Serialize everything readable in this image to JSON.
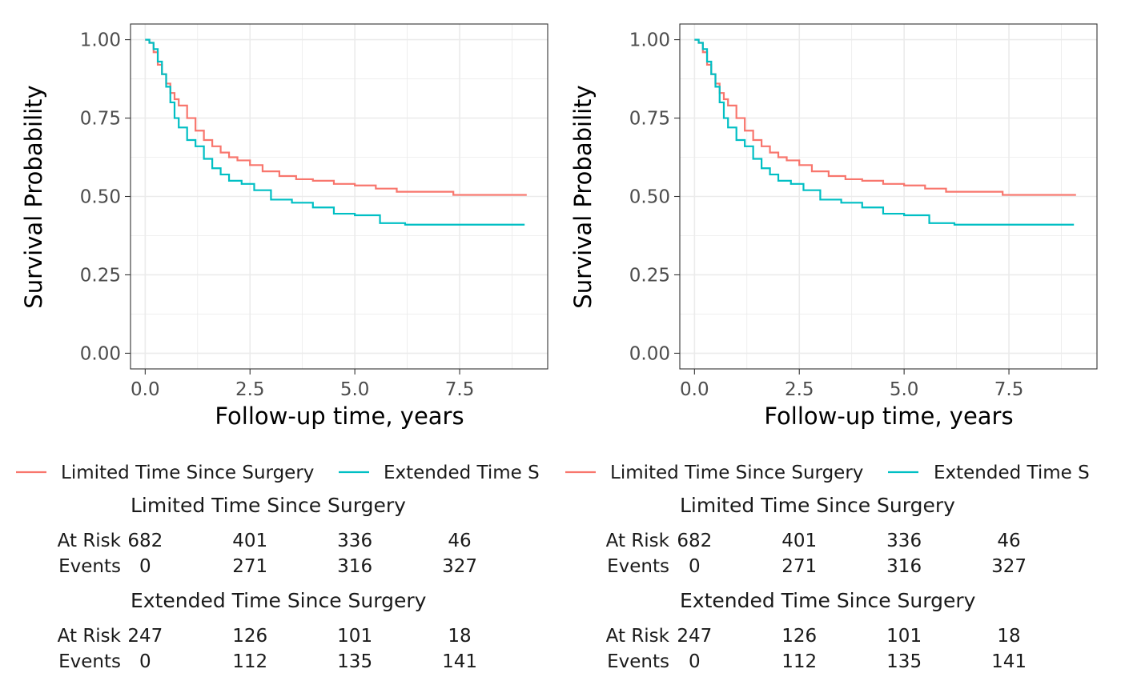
{
  "colors": {
    "limited": "#F8766D",
    "extended": "#00BFC4",
    "grid": "#EBEBEB",
    "text": "#4D4D4D"
  },
  "chart_data": [
    {
      "type": "line",
      "title": "",
      "xlabel": "Follow-up time, years",
      "ylabel": "Survival Probability",
      "xlim": [
        -0.35,
        9.6
      ],
      "ylim": [
        -0.05,
        1.05
      ],
      "xticks": [
        "0.0",
        "2.5",
        "5.0",
        "7.5"
      ],
      "yticks": [
        "0.00",
        "0.25",
        "0.50",
        "0.75",
        "1.00"
      ],
      "grid": true,
      "legend_position": "bottom",
      "series": [
        {
          "name": "Limited Time Since Surgery",
          "x": [
            0,
            0.1,
            0.2,
            0.3,
            0.4,
            0.5,
            0.6,
            0.7,
            0.8,
            1.0,
            1.2,
            1.4,
            1.6,
            1.8,
            2.0,
            2.2,
            2.5,
            2.8,
            3.2,
            3.6,
            4.0,
            4.5,
            5.0,
            5.5,
            6.0,
            7.0,
            7.35,
            8.0,
            9.1
          ],
          "y": [
            1.0,
            0.99,
            0.96,
            0.92,
            0.89,
            0.86,
            0.83,
            0.81,
            0.79,
            0.75,
            0.71,
            0.68,
            0.66,
            0.64,
            0.625,
            0.615,
            0.6,
            0.58,
            0.565,
            0.555,
            0.55,
            0.54,
            0.535,
            0.525,
            0.515,
            0.515,
            0.505,
            0.505,
            0.505
          ]
        },
        {
          "name": "Extended Time Since Surgery",
          "x": [
            0,
            0.1,
            0.2,
            0.3,
            0.4,
            0.5,
            0.6,
            0.7,
            0.8,
            1.0,
            1.2,
            1.4,
            1.6,
            1.8,
            2.0,
            2.3,
            2.6,
            3.0,
            3.5,
            4.0,
            4.5,
            5.0,
            5.5,
            5.6,
            6.0,
            6.2,
            7.0,
            9.05
          ],
          "y": [
            1.0,
            0.99,
            0.97,
            0.93,
            0.89,
            0.85,
            0.8,
            0.75,
            0.72,
            0.68,
            0.66,
            0.62,
            0.59,
            0.57,
            0.55,
            0.54,
            0.52,
            0.49,
            0.48,
            0.465,
            0.445,
            0.44,
            0.44,
            0.415,
            0.415,
            0.41,
            0.41,
            0.41
          ]
        }
      ]
    },
    {
      "type": "line",
      "title": "",
      "xlabel": "Follow-up time, years",
      "ylabel": "Survival Probability",
      "xlim": [
        -0.35,
        9.6
      ],
      "ylim": [
        -0.05,
        1.05
      ],
      "xticks": [
        "0.0",
        "2.5",
        "5.0",
        "7.5"
      ],
      "yticks": [
        "0.00",
        "0.25",
        "0.50",
        "0.75",
        "1.00"
      ],
      "grid": true,
      "legend_position": "bottom",
      "series": [
        {
          "name": "Limited Time Since Surgery",
          "x": [
            0,
            0.1,
            0.2,
            0.3,
            0.4,
            0.5,
            0.6,
            0.7,
            0.8,
            1.0,
            1.2,
            1.4,
            1.6,
            1.8,
            2.0,
            2.2,
            2.5,
            2.8,
            3.2,
            3.6,
            4.0,
            4.5,
            5.0,
            5.5,
            6.0,
            7.0,
            7.35,
            8.0,
            9.1
          ],
          "y": [
            1.0,
            0.99,
            0.96,
            0.92,
            0.89,
            0.86,
            0.83,
            0.81,
            0.79,
            0.75,
            0.71,
            0.68,
            0.66,
            0.64,
            0.625,
            0.615,
            0.6,
            0.58,
            0.565,
            0.555,
            0.55,
            0.54,
            0.535,
            0.525,
            0.515,
            0.515,
            0.505,
            0.505,
            0.505
          ]
        },
        {
          "name": "Extended Time Since Surgery",
          "x": [
            0,
            0.1,
            0.2,
            0.3,
            0.4,
            0.5,
            0.6,
            0.7,
            0.8,
            1.0,
            1.2,
            1.4,
            1.6,
            1.8,
            2.0,
            2.3,
            2.6,
            3.0,
            3.5,
            4.0,
            4.5,
            5.0,
            5.5,
            5.6,
            6.0,
            6.2,
            7.0,
            9.05
          ],
          "y": [
            1.0,
            0.99,
            0.97,
            0.93,
            0.89,
            0.85,
            0.8,
            0.75,
            0.72,
            0.68,
            0.66,
            0.62,
            0.59,
            0.57,
            0.55,
            0.54,
            0.52,
            0.49,
            0.48,
            0.465,
            0.445,
            0.44,
            0.44,
            0.415,
            0.415,
            0.41,
            0.41,
            0.41
          ]
        }
      ]
    }
  ],
  "legend": {
    "items": [
      "Limited Time Since Surgery",
      "Extended Time S"
    ]
  },
  "risk_table": {
    "row_labels": [
      "At Risk",
      "Events"
    ],
    "times": [
      0,
      2.5,
      5.0,
      7.5
    ],
    "groups": [
      {
        "title": "Limited Time Since Surgery",
        "at_risk": [
          "682",
          "401",
          "336",
          "46"
        ],
        "events": [
          "0",
          "271",
          "316",
          "327"
        ]
      },
      {
        "title": "Extended Time Since Surgery",
        "at_risk": [
          "247",
          "126",
          "101",
          "18"
        ],
        "events": [
          "0",
          "112",
          "135",
          "141"
        ]
      }
    ]
  }
}
